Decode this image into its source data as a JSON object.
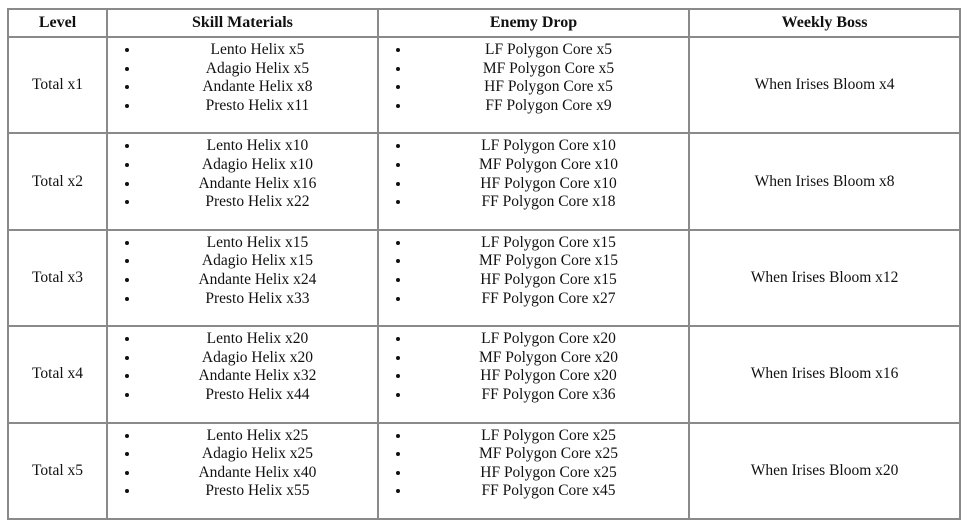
{
  "table": {
    "headers": [
      "Level",
      "Skill Materials",
      "Enemy Drop",
      "Weekly Boss"
    ],
    "rows": [
      {
        "level": "Total x1",
        "skill_materials": [
          "Lento Helix x5",
          "Adagio Helix x5",
          "Andante Helix x8",
          "Presto Helix x11"
        ],
        "enemy_drop": [
          "LF Polygon Core x5",
          "MF Polygon Core x5",
          "HF Polygon Core x5",
          "FF Polygon Core x9"
        ],
        "weekly_boss": "When Irises Bloom x4"
      },
      {
        "level": "Total x2",
        "skill_materials": [
          "Lento Helix x10",
          "Adagio Helix x10",
          "Andante Helix x16",
          "Presto Helix x22"
        ],
        "enemy_drop": [
          "LF Polygon Core x10",
          "MF Polygon Core x10",
          "HF Polygon Core x10",
          "FF Polygon Core x18"
        ],
        "weekly_boss": "When Irises Bloom x8"
      },
      {
        "level": "Total x3",
        "skill_materials": [
          "Lento Helix x15",
          "Adagio Helix x15",
          "Andante Helix x24",
          "Presto Helix x33"
        ],
        "enemy_drop": [
          "LF Polygon Core x15",
          "MF Polygon Core x15",
          "HF Polygon Core x15",
          "FF Polygon Core x27"
        ],
        "weekly_boss": "When Irises Bloom x12"
      },
      {
        "level": "Total x4",
        "skill_materials": [
          "Lento Helix x20",
          "Adagio Helix x20",
          "Andante Helix x32",
          "Presto Helix x44"
        ],
        "enemy_drop": [
          "LF Polygon Core x20",
          "MF Polygon Core x20",
          "HF Polygon Core x20",
          "FF Polygon Core x36"
        ],
        "weekly_boss": "When Irises Bloom x16"
      },
      {
        "level": "Total x5",
        "skill_materials": [
          "Lento Helix x25",
          "Adagio Helix x25",
          "Andante Helix x40",
          "Presto Helix x55"
        ],
        "enemy_drop": [
          "LF Polygon Core x25",
          "MF Polygon Core x25",
          "HF Polygon Core x25",
          "FF Polygon Core x45"
        ],
        "weekly_boss": "When Irises Bloom x20"
      }
    ]
  },
  "colors": {
    "outer_border": "#4d4d4d",
    "inner_border": "#8a8a8a",
    "text": "#111111",
    "background": "#ffffff"
  }
}
